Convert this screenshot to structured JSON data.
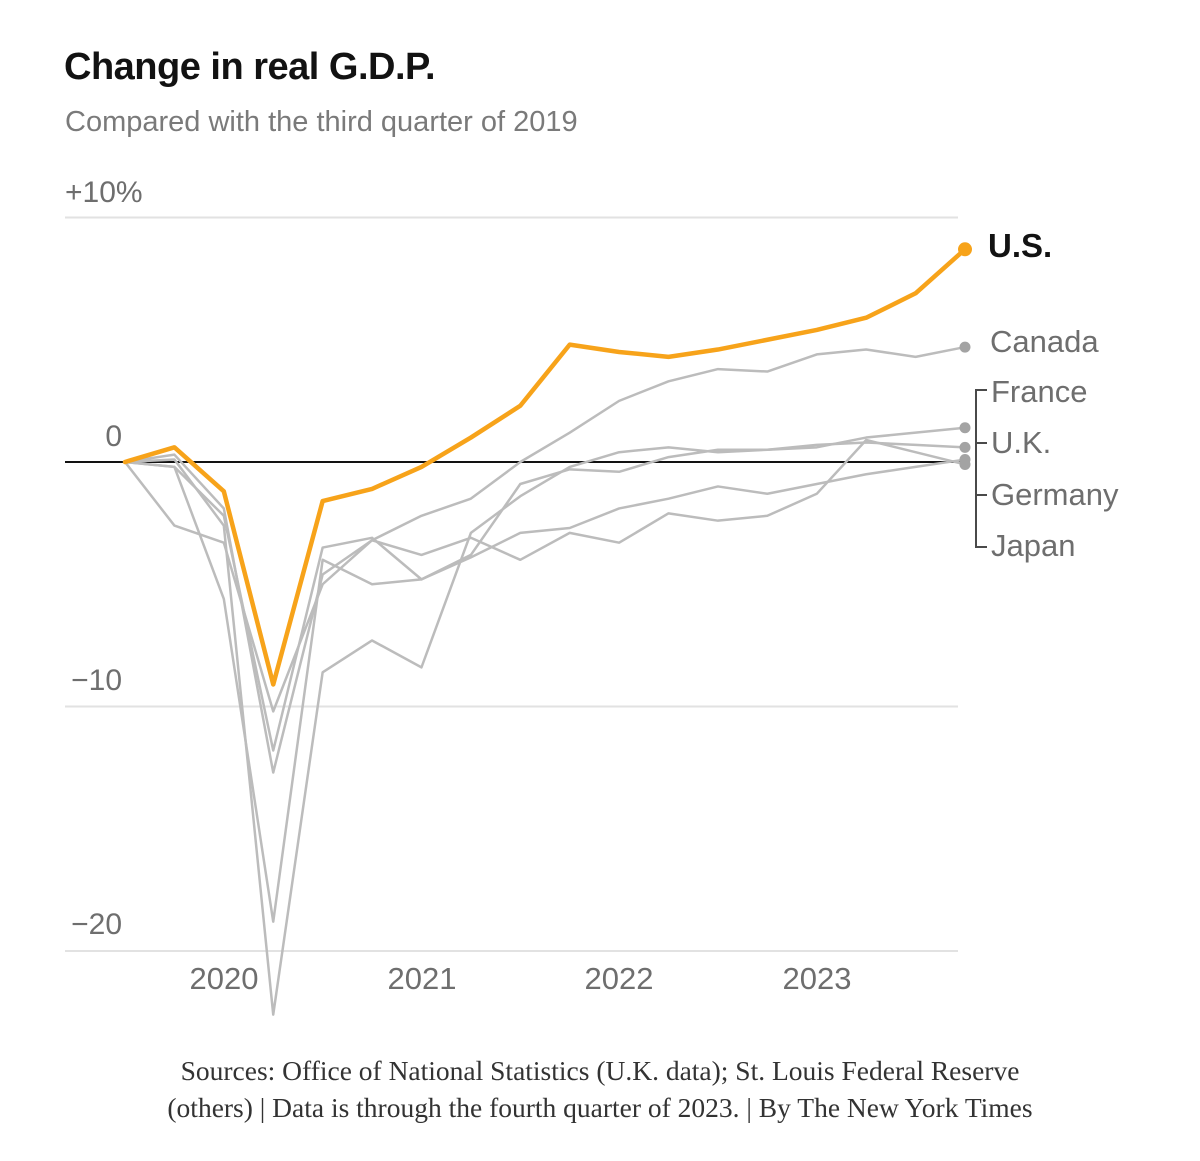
{
  "header": {
    "title": "Change in real G.D.P.",
    "subtitle": "Compared with the third quarter of 2019"
  },
  "axes": {
    "y_labels": [
      {
        "text": "+10%",
        "value": 10
      },
      {
        "text": "0",
        "value": 0
      },
      {
        "text": "−10",
        "value": -10
      },
      {
        "text": "−20",
        "value": -20
      }
    ],
    "x_labels": [
      {
        "text": "2020",
        "quarter_index": 2
      },
      {
        "text": "2021",
        "quarter_index": 6
      },
      {
        "text": "2022",
        "quarter_index": 10
      },
      {
        "text": "2023",
        "quarter_index": 14
      }
    ]
  },
  "legend": {
    "us": "U.S.",
    "canada": "Canada",
    "france": "France",
    "uk": "U.K.",
    "germany": "Germany",
    "japan": "Japan"
  },
  "footer": {
    "line1": "Sources: Office of National Statistics (U.K. data); St. Louis Federal Reserve",
    "line2": "(others) | Data is through the fourth quarter of 2023. | By The New York Times"
  },
  "chart_data": {
    "type": "line",
    "title": "Change in real G.D.P.",
    "subtitle": "Compared with the third quarter of 2019",
    "unit": "percent change vs. Q3 2019",
    "x": [
      "Q3 2019",
      "Q4 2019",
      "Q1 2020",
      "Q2 2020",
      "Q3 2020",
      "Q4 2020",
      "Q1 2021",
      "Q2 2021",
      "Q3 2021",
      "Q4 2021",
      "Q1 2022",
      "Q2 2022",
      "Q3 2022",
      "Q4 2022",
      "Q1 2023",
      "Q2 2023",
      "Q3 2023",
      "Q4 2023"
    ],
    "ylim": [
      -24,
      11
    ],
    "gridlines": [
      10,
      -10,
      -20
    ],
    "baseline": 0,
    "grid_color": "#e2e2e2",
    "baseline_color": "#121212",
    "legend_bracket_color": "#4a4a4a",
    "series": [
      {
        "name": "Canada",
        "color": "#bcbcbc",
        "dot_color": "#a3a3a3",
        "values": [
          0,
          0.3,
          -1.9,
          -12.7,
          -4.6,
          -3.2,
          -2.2,
          -1.5,
          0.0,
          1.2,
          2.5,
          3.3,
          3.8,
          3.7,
          4.4,
          4.6,
          4.3,
          4.7
        ]
      },
      {
        "name": "France",
        "color": "#bcbcbc",
        "dot_color": "#a3a3a3",
        "values": [
          0,
          -0.2,
          -5.6,
          -18.8,
          -4.0,
          -5.0,
          -4.8,
          -3.8,
          -0.9,
          -0.3,
          -0.4,
          0.2,
          0.5,
          0.5,
          0.6,
          1.0,
          1.2,
          1.4
        ]
      },
      {
        "name": "U.K.",
        "color": "#bcbcbc",
        "dot_color": "#a3a3a3",
        "values": [
          0,
          0.1,
          -2.6,
          -22.6,
          -8.6,
          -7.3,
          -8.4,
          -2.9,
          -1.4,
          -0.2,
          0.4,
          0.6,
          0.4,
          0.5,
          0.7,
          0.8,
          0.7,
          0.6
        ]
      },
      {
        "name": "Germany",
        "color": "#bcbcbc",
        "dot_color": "#a3a3a3",
        "values": [
          0,
          -0.2,
          -2.2,
          -11.8,
          -3.5,
          -3.1,
          -4.8,
          -3.9,
          -2.9,
          -2.7,
          -1.9,
          -1.5,
          -1.0,
          -1.3,
          -0.9,
          -0.5,
          -0.2,
          0.1
        ]
      },
      {
        "name": "Japan",
        "color": "#bcbcbc",
        "dot_color": "#a3a3a3",
        "values": [
          0,
          -2.6,
          -3.3,
          -10.2,
          -5.0,
          -3.2,
          -3.8,
          -3.1,
          -4.0,
          -2.9,
          -3.3,
          -2.1,
          -2.4,
          -2.2,
          -1.3,
          0.9,
          0.4,
          -0.1
        ]
      },
      {
        "name": "U.S.",
        "color": "#f7a31a",
        "dot_color": "#f7a31a",
        "emphasis": true,
        "values": [
          0,
          0.6,
          -1.2,
          -9.1,
          -1.6,
          -1.1,
          -0.2,
          1.0,
          2.3,
          4.8,
          4.5,
          4.3,
          4.6,
          5.0,
          5.4,
          5.9,
          6.9,
          8.7
        ]
      }
    ]
  }
}
